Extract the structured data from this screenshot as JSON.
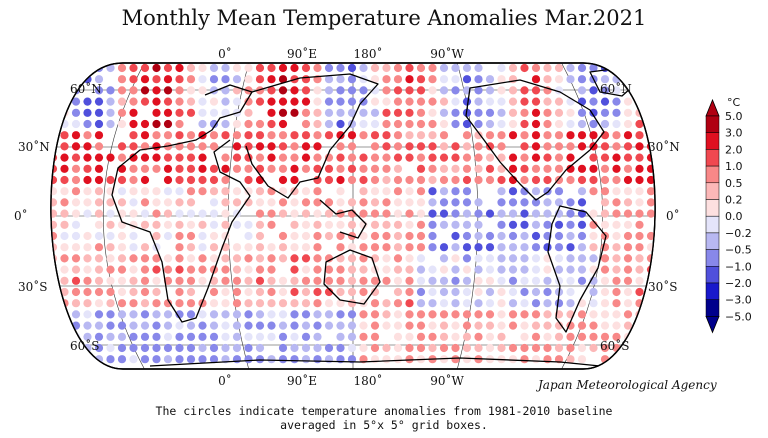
{
  "title": "Monthly Mean Temperature Anomalies Mar.2021",
  "top_lon_labels": [
    "0˚",
    "90˚E",
    "180˚",
    "90˚W"
  ],
  "bottom_lon_labels": [
    "0˚",
    "90˚E",
    "180˚",
    "90˚W"
  ],
  "left_lat_labels": [
    "60˚N",
    "30˚N",
    "0˚",
    "30˚S",
    "60˚S"
  ],
  "right_lat_labels": [
    "60˚N",
    "30˚N",
    "0˚",
    "30˚S",
    "60˚S"
  ],
  "agency": "Japan Meteorological Agency",
  "caption_line1": "The circles indicate temperature anomalies from 1981-2010 baseline",
  "caption_line2": "averaged in 5°x 5° grid boxes.",
  "colorbar": {
    "unit": "°C",
    "labels": [
      "5.0",
      "3.0",
      "2.0",
      "1.0",
      "0.5",
      "0.2",
      "0.0",
      "−0.2",
      "−0.5",
      "−1.0",
      "−2.0",
      "−3.0",
      "−5.0"
    ],
    "colors": [
      "#b00012",
      "#e01020",
      "#f04850",
      "#f88888",
      "#fcb8b8",
      "#fde0e0",
      "#e4e4fa",
      "#b8b8f2",
      "#8888ea",
      "#5050dc",
      "#1818cc",
      "#00008c"
    ]
  }
}
